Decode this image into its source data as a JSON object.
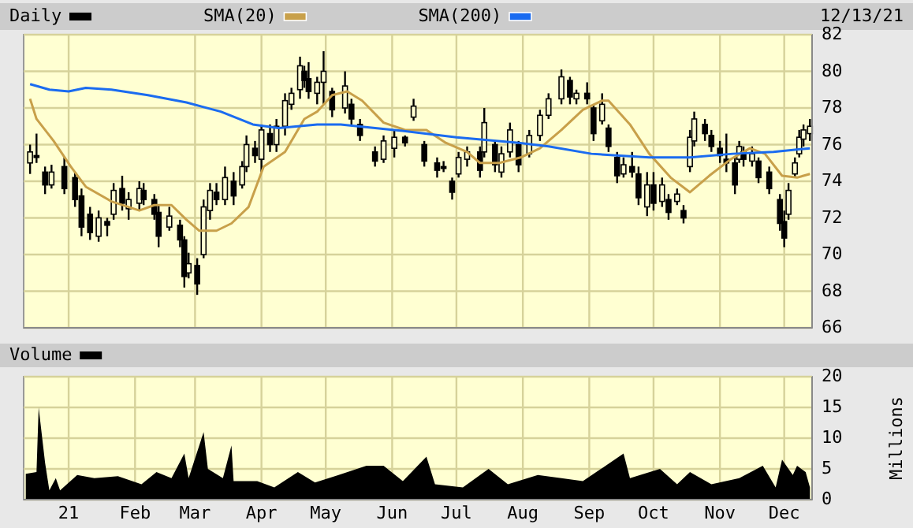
{
  "chart_data": [
    {
      "type": "candlestick",
      "annotations": [
        "12/13/21"
      ],
      "legend": "top left",
      "grid": true,
      "tick_labels": "y",
      "xlim": [
        "2020-12-11",
        "2021-12-14"
      ],
      "ylim": [
        66,
        82
      ],
      "yticks": [
        66,
        68,
        70,
        72,
        74,
        76,
        78,
        80,
        82
      ],
      "xticks": [
        {
          "value": "2021-01-01",
          "label": null
        },
        {
          "value": "2021-03-01",
          "label": null
        },
        {
          "value": "2021-04-01",
          "label": null
        },
        {
          "value": "2021-05-01",
          "label": null
        },
        {
          "value": "2021-06-01",
          "label": null
        },
        {
          "value": "2021-07-01",
          "label": null
        },
        {
          "value": "2021-08-01",
          "label": null
        },
        {
          "value": "2021-09-01",
          "label": null
        },
        {
          "value": "2021-10-01",
          "label": null
        },
        {
          "value": "2021-11-01",
          "label": null
        },
        {
          "value": "2021-12-01",
          "label": null
        }
      ],
      "series": [
        {
          "name": "Daily",
          "color": "#000000",
          "x": [
            "2020-12-14",
            "2020-12-17",
            "2020-12-21",
            "2020-12-24",
            "2020-12-30",
            "2021-01-04",
            "2021-01-07",
            "2021-01-11",
            "2021-01-15",
            "2021-01-19",
            "2021-01-22",
            "2021-01-26",
            "2021-01-29",
            "2021-02-03",
            "2021-02-05",
            "2021-02-10",
            "2021-02-12",
            "2021-02-17",
            "2021-02-22",
            "2021-02-24",
            "2021-02-26",
            "2021-03-02",
            "2021-03-05",
            "2021-03-08",
            "2021-03-11",
            "2021-03-15",
            "2021-03-19",
            "2021-03-23",
            "2021-03-25",
            "2021-03-29",
            "2021-04-01",
            "2021-04-05",
            "2021-04-08",
            "2021-04-12",
            "2021-04-15",
            "2021-04-19",
            "2021-04-21",
            "2021-04-23",
            "2021-04-27",
            "2021-04-30",
            "2021-05-04",
            "2021-05-10",
            "2021-05-13",
            "2021-05-17",
            "2021-05-24",
            "2021-05-28",
            "2021-06-02",
            "2021-06-07",
            "2021-06-11",
            "2021-06-16",
            "2021-06-22",
            "2021-06-25",
            "2021-06-29",
            "2021-07-02",
            "2021-07-06",
            "2021-07-12",
            "2021-07-14",
            "2021-07-19",
            "2021-07-22",
            "2021-07-26",
            "2021-07-30",
            "2021-08-04",
            "2021-08-09",
            "2021-08-13",
            "2021-08-19",
            "2021-08-23",
            "2021-08-26",
            "2021-08-31",
            "2021-09-03",
            "2021-09-07",
            "2021-09-10",
            "2021-09-14",
            "2021-09-17",
            "2021-09-21",
            "2021-09-24",
            "2021-09-28",
            "2021-10-01",
            "2021-10-05",
            "2021-10-08",
            "2021-10-12",
            "2021-10-15",
            "2021-10-18",
            "2021-10-20",
            "2021-10-25",
            "2021-10-28",
            "2021-11-01",
            "2021-11-04",
            "2021-11-08",
            "2021-11-10",
            "2021-11-12",
            "2021-11-16",
            "2021-11-19",
            "2021-11-24",
            "2021-11-29",
            "2021-12-01",
            "2021-12-03",
            "2021-12-06",
            "2021-12-08",
            "2021-12-10",
            "2021-12-13"
          ],
          "ohlc": [
            [
              75.0,
              76.0,
              74.4,
              75.6
            ],
            [
              75.4,
              76.6,
              75.0,
              75.3
            ],
            [
              74.5,
              74.8,
              73.3,
              73.8
            ],
            [
              73.8,
              74.9,
              73.6,
              74.5
            ],
            [
              74.8,
              75.3,
              73.3,
              73.6
            ],
            [
              74.2,
              74.5,
              72.6,
              73.0
            ],
            [
              73.2,
              73.6,
              71.0,
              71.5
            ],
            [
              72.2,
              72.6,
              70.8,
              71.2
            ],
            [
              71.0,
              72.4,
              70.7,
              72.0
            ],
            [
              71.8,
              72.0,
              71.0,
              71.6
            ],
            [
              72.2,
              73.9,
              71.9,
              73.5
            ],
            [
              73.6,
              74.3,
              72.4,
              72.8
            ],
            [
              72.5,
              73.4,
              71.9,
              73.0
            ],
            [
              72.8,
              74.0,
              72.4,
              73.6
            ],
            [
              73.5,
              73.9,
              72.7,
              73.0
            ],
            [
              73.0,
              73.3,
              71.9,
              72.2
            ],
            [
              72.3,
              72.7,
              70.4,
              71.0
            ],
            [
              71.5,
              72.6,
              71.3,
              72.1
            ],
            [
              71.6,
              71.9,
              70.4,
              70.8
            ],
            [
              70.8,
              71.0,
              68.2,
              68.8
            ],
            [
              69.0,
              70.1,
              68.7,
              69.5
            ],
            [
              69.4,
              69.8,
              67.8,
              68.4
            ],
            [
              70.0,
              73.0,
              69.8,
              72.6
            ],
            [
              72.4,
              73.9,
              71.9,
              73.5
            ],
            [
              73.4,
              73.9,
              72.7,
              73.0
            ],
            [
              73.0,
              74.8,
              72.7,
              74.2
            ],
            [
              74.0,
              74.5,
              72.7,
              73.2
            ],
            [
              73.8,
              75.1,
              73.6,
              74.8
            ],
            [
              74.8,
              76.5,
              74.5,
              76.0
            ],
            [
              75.8,
              76.2,
              75.0,
              75.4
            ],
            [
              75.2,
              77.1,
              74.5,
              76.8
            ],
            [
              76.6,
              77.1,
              75.6,
              76.0
            ],
            [
              76.0,
              77.4,
              75.6,
              77.0
            ],
            [
              77.0,
              78.8,
              76.5,
              78.4
            ],
            [
              78.2,
              79.1,
              77.9,
              78.8
            ],
            [
              79.0,
              80.8,
              78.5,
              80.3
            ],
            [
              80.0,
              80.3,
              79.1,
              79.5
            ],
            [
              79.6,
              80.5,
              78.5,
              78.9
            ],
            [
              78.8,
              79.7,
              78.2,
              79.4
            ],
            [
              79.4,
              81.1,
              78.2,
              80.0
            ],
            [
              78.9,
              79.1,
              77.5,
              77.9
            ],
            [
              78.0,
              80.0,
              77.7,
              79.2
            ],
            [
              78.2,
              78.5,
              77.1,
              77.4
            ],
            [
              77.1,
              77.4,
              76.2,
              76.5
            ],
            [
              75.6,
              75.9,
              74.8,
              75.1
            ],
            [
              75.2,
              76.5,
              75.0,
              76.2
            ],
            [
              75.8,
              76.8,
              75.3,
              76.4
            ],
            [
              76.4,
              76.5,
              75.9,
              76.1
            ],
            [
              77.5,
              78.5,
              77.3,
              78.1
            ],
            [
              76.0,
              76.2,
              74.8,
              75.1
            ],
            [
              75.0,
              75.3,
              74.2,
              74.6
            ],
            [
              74.8,
              75.1,
              74.5,
              74.7
            ],
            [
              74.0,
              74.2,
              73.0,
              73.4
            ],
            [
              74.4,
              75.6,
              74.2,
              75.3
            ],
            [
              75.2,
              75.9,
              74.8,
              75.6
            ],
            [
              75.6,
              75.9,
              74.2,
              74.6
            ],
            [
              75.6,
              78.0,
              75.3,
              77.2
            ],
            [
              76.0,
              76.2,
              74.5,
              74.9
            ],
            [
              74.5,
              75.9,
              74.2,
              75.5
            ],
            [
              75.6,
              77.2,
              75.3,
              76.8
            ],
            [
              76.0,
              76.2,
              74.5,
              74.9
            ],
            [
              75.5,
              76.8,
              75.3,
              76.5
            ],
            [
              76.5,
              77.9,
              76.2,
              77.6
            ],
            [
              77.6,
              78.8,
              77.4,
              78.5
            ],
            [
              78.5,
              80.1,
              78.2,
              79.7
            ],
            [
              79.5,
              79.7,
              78.2,
              78.6
            ],
            [
              78.5,
              79.0,
              78.2,
              78.8
            ],
            [
              78.8,
              79.4,
              78.2,
              78.5
            ],
            [
              78.0,
              78.2,
              76.2,
              76.6
            ],
            [
              77.3,
              78.8,
              77.1,
              78.2
            ],
            [
              76.9,
              77.1,
              75.6,
              75.9
            ],
            [
              75.3,
              75.6,
              73.9,
              74.3
            ],
            [
              74.4,
              75.3,
              74.2,
              74.9
            ],
            [
              74.8,
              75.6,
              74.2,
              74.5
            ],
            [
              74.4,
              74.8,
              72.7,
              73.1
            ],
            [
              72.6,
              74.5,
              72.1,
              73.8
            ],
            [
              73.8,
              74.5,
              72.4,
              72.8
            ],
            [
              72.9,
              74.2,
              72.6,
              73.8
            ],
            [
              73.0,
              73.3,
              71.9,
              72.3
            ],
            [
              72.9,
              73.6,
              72.7,
              73.3
            ],
            [
              72.4,
              72.7,
              71.7,
              72.0
            ],
            [
              74.8,
              76.8,
              74.5,
              76.4
            ],
            [
              76.2,
              77.8,
              75.9,
              77.4
            ],
            [
              77.1,
              77.4,
              76.2,
              76.6
            ],
            [
              76.5,
              76.8,
              75.6,
              75.9
            ],
            [
              75.8,
              76.2,
              75.0,
              75.4
            ],
            [
              75.2,
              76.6,
              74.5,
              75.0
            ],
            [
              75.0,
              75.3,
              73.3,
              73.8
            ],
            [
              75.2,
              76.2,
              75.0,
              75.9
            ],
            [
              75.6,
              75.9,
              74.8,
              75.2
            ],
            [
              75.1,
              75.9,
              74.8,
              75.5
            ],
            [
              75.1,
              75.3,
              73.9,
              74.2
            ],
            [
              74.5,
              74.8,
              73.3,
              73.6
            ],
            [
              73.0,
              73.3,
              71.3,
              71.7
            ],
            [
              71.8,
              72.4,
              70.4,
              70.9
            ],
            [
              72.2,
              73.9,
              71.9,
              73.5
            ],
            [
              74.4,
              75.3,
              74.2,
              75.0
            ],
            [
              75.5,
              76.8,
              75.3,
              76.4
            ],
            [
              76.3,
              77.1,
              75.9,
              76.8
            ],
            [
              76.6,
              77.4,
              76.2,
              77.0
            ]
          ]
        },
        {
          "type": "line",
          "name": "SMA(20)",
          "color": "#c8a04a",
          "x": [
            "2020-12-14",
            "2020-12-17",
            "2020-12-25",
            "2021-01-02",
            "2021-01-09",
            "2021-01-21",
            "2021-02-03",
            "2021-02-10",
            "2021-02-18",
            "2021-02-25",
            "2021-03-03",
            "2021-03-11",
            "2021-03-18",
            "2021-03-26",
            "2021-04-02",
            "2021-04-12",
            "2021-04-21",
            "2021-04-27",
            "2021-05-04",
            "2021-05-11",
            "2021-05-18",
            "2021-05-28",
            "2021-06-07",
            "2021-06-17",
            "2021-06-26",
            "2021-07-06",
            "2021-07-12",
            "2021-07-21",
            "2021-07-31",
            "2021-08-09",
            "2021-08-19",
            "2021-08-29",
            "2021-09-07",
            "2021-09-10",
            "2021-09-20",
            "2021-09-29",
            "2021-10-09",
            "2021-10-18",
            "2021-10-27",
            "2021-11-06",
            "2021-11-15",
            "2021-11-22",
            "2021-11-30",
            "2021-12-07",
            "2021-12-13"
          ],
          "values": [
            78.5,
            77.4,
            76.2,
            74.8,
            73.7,
            72.9,
            72.4,
            72.7,
            72.7,
            71.9,
            71.3,
            71.3,
            71.7,
            72.6,
            74.8,
            75.6,
            77.4,
            77.8,
            78.7,
            78.9,
            78.4,
            77.2,
            76.8,
            76.8,
            76.1,
            75.6,
            75.0,
            75.0,
            75.3,
            75.8,
            76.8,
            77.9,
            78.4,
            78.4,
            77.1,
            75.5,
            74.2,
            73.4,
            74.3,
            75.2,
            75.8,
            75.5,
            74.3,
            74.2,
            74.4
          ]
        },
        {
          "type": "line",
          "name": "SMA(200)",
          "color": "#1a6bf0",
          "x": [
            "2020-12-14",
            "2020-12-23",
            "2021-01-01",
            "2021-01-09",
            "2021-01-21",
            "2021-02-07",
            "2021-02-25",
            "2021-03-13",
            "2021-03-28",
            "2021-04-09",
            "2021-04-27",
            "2021-05-08",
            "2021-06-02",
            "2021-07-01",
            "2021-07-30",
            "2021-08-13",
            "2021-09-02",
            "2021-09-29",
            "2021-10-18",
            "2021-11-07",
            "2021-11-26",
            "2021-12-13"
          ],
          "values": [
            79.3,
            79.0,
            78.9,
            79.1,
            79.0,
            78.7,
            78.3,
            77.8,
            77.1,
            76.9,
            77.1,
            77.1,
            76.8,
            76.4,
            76.1,
            75.9,
            75.5,
            75.3,
            75.3,
            75.5,
            75.6,
            75.8
          ]
        }
      ]
    },
    {
      "type": "area",
      "ylabel": "Millions",
      "legend": "top left",
      "grid": true,
      "xlim": [
        "2020-12-11",
        "2021-12-14"
      ],
      "ylim": [
        0,
        20
      ],
      "yticks": [
        0,
        5,
        10,
        15,
        20
      ],
      "xticks": [
        {
          "value": "2021-01-01",
          "label": "21"
        },
        {
          "value": "2021-02-01",
          "label": "Feb"
        },
        {
          "value": "2021-03-01",
          "label": "Mar"
        },
        {
          "value": "2021-04-01",
          "label": "Apr"
        },
        {
          "value": "2021-05-01",
          "label": "May"
        },
        {
          "value": "2021-06-01",
          "label": "Jun"
        },
        {
          "value": "2021-07-01",
          "label": "Jul"
        },
        {
          "value": "2021-08-01",
          "label": "Aug"
        },
        {
          "value": "2021-09-01",
          "label": "Sep"
        },
        {
          "value": "2021-10-01",
          "label": "Oct"
        },
        {
          "value": "2021-11-01",
          "label": "Nov"
        },
        {
          "value": "2021-12-01",
          "label": "Dec"
        }
      ],
      "series": [
        {
          "name": "Volume",
          "color": "#000000",
          "x": [
            "2020-12-12",
            "2020-12-17",
            "2020-12-18",
            "2020-12-20",
            "2020-12-21",
            "2020-12-23",
            "2020-12-26",
            "2020-12-28",
            "2021-01-05",
            "2021-01-13",
            "2021-01-24",
            "2021-02-04",
            "2021-02-11",
            "2021-02-18",
            "2021-02-24",
            "2021-02-26",
            "2021-03-05",
            "2021-03-07",
            "2021-03-14",
            "2021-03-18",
            "2021-03-19",
            "2021-03-30",
            "2021-04-07",
            "2021-04-18",
            "2021-04-26",
            "2021-05-07",
            "2021-05-20",
            "2021-05-28",
            "2021-06-06",
            "2021-06-17",
            "2021-06-21",
            "2021-07-04",
            "2021-07-16",
            "2021-07-25",
            "2021-08-08",
            "2021-08-19",
            "2021-08-29",
            "2021-09-17",
            "2021-09-20",
            "2021-10-04",
            "2021-10-12",
            "2021-10-18",
            "2021-10-28",
            "2021-11-10",
            "2021-11-21",
            "2021-11-27",
            "2021-11-30",
            "2021-12-05",
            "2021-12-07",
            "2021-12-11",
            "2021-12-13"
          ],
          "values": [
            4.2,
            4.5,
            15,
            9,
            6,
            1.5,
            3.5,
            1.5,
            4,
            3.5,
            3.8,
            2.5,
            4.5,
            3.5,
            7.5,
            3.5,
            11,
            5,
            3.5,
            8.8,
            3,
            3,
            2,
            4.5,
            2.8,
            4,
            5.5,
            5.5,
            3,
            7,
            2.5,
            2,
            5,
            2.5,
            4,
            3.5,
            3,
            7.5,
            3.5,
            5,
            2.5,
            4.5,
            2.5,
            3.5,
            5.5,
            2,
            6.5,
            4,
            5.5,
            4.5,
            2
          ]
        }
      ]
    }
  ]
}
